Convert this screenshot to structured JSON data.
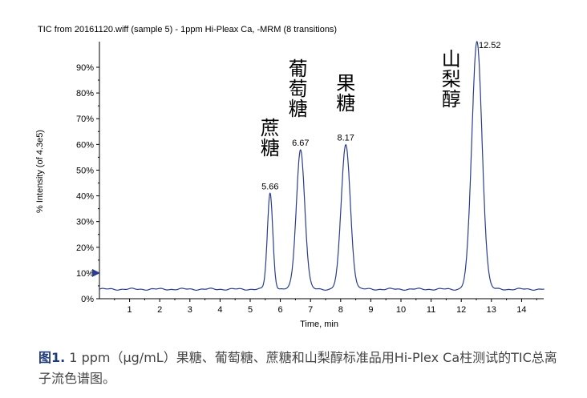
{
  "chart_data": {
    "type": "line",
    "title": "TIC from 20161120.wiff (sample 5) - 1ppm Hi-Pleax Ca, -MRM (8 transitions)",
    "xlabel": "Time, min",
    "ylabel": "% Intensity (of 4.3e5)",
    "xlim": [
      0,
      15
    ],
    "ylim": [
      0,
      100
    ],
    "x_ticks": [
      "1",
      "2",
      "3",
      "4",
      "5",
      "6",
      "7",
      "8",
      "9",
      "10",
      "11",
      "12",
      "13",
      "14"
    ],
    "y_ticks": [
      "0%",
      "10%",
      "20%",
      "30%",
      "40%",
      "50%",
      "60%",
      "70%",
      "80%",
      "90%"
    ],
    "baseline": 3.7,
    "series": [
      {
        "color": "#2b3d8f",
        "peaks": [
          {
            "rt": 5.66,
            "height": 41,
            "width": 0.09
          },
          {
            "rt": 6.67,
            "height": 58,
            "width": 0.14
          },
          {
            "rt": 8.17,
            "height": 60,
            "width": 0.15
          },
          {
            "rt": 12.52,
            "height": 100,
            "width": 0.17
          }
        ]
      }
    ],
    "peak_labels": [
      {
        "text": "5.66",
        "x": 5.66,
        "y": 41
      },
      {
        "text": "6.67",
        "x": 6.67,
        "y": 58
      },
      {
        "text": "8.17",
        "x": 8.17,
        "y": 60
      },
      {
        "text": "12.52",
        "x": 12.52,
        "y": 100
      }
    ],
    "annotations": [
      {
        "text": "蔗糖",
        "x": 5.66,
        "y": 41
      },
      {
        "text": "葡萄糖",
        "x": 6.67,
        "y": 58
      },
      {
        "text": "果糖",
        "x": 8.17,
        "y": 60
      },
      {
        "text": "山梨醇",
        "x": 12.52,
        "y": 100
      }
    ],
    "marker_color": "#2b3d8f",
    "marker_y": 10
  },
  "caption": {
    "figure_label": "图1.",
    "text": " 1 ppm（μg/mL）果糖、葡萄糖、蔗糖和山梨醇标准品用Hi-Plex Ca柱测试的TIC总离子流色谱图。"
  }
}
